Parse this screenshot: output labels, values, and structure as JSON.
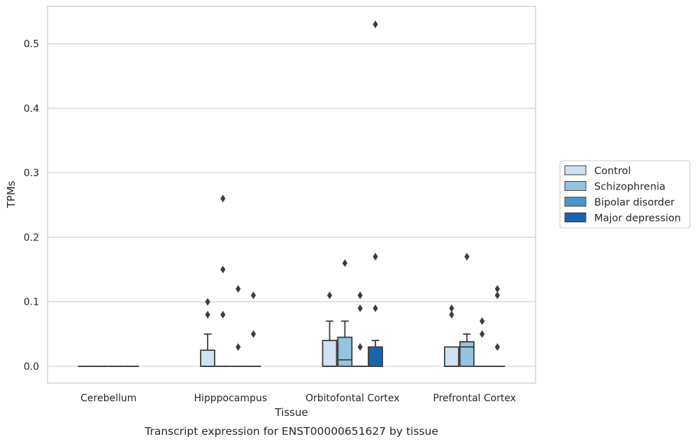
{
  "caption": "Transcript expression for ENST00000651627 by tissue",
  "chart_data": {
    "type": "box",
    "xlabel": "Tissue",
    "ylabel": "TPMs",
    "ylim": [
      -0.026,
      0.558
    ],
    "yticks": [
      0.0,
      0.1,
      0.2,
      0.3,
      0.4,
      0.5
    ],
    "ytick_labels": [
      "0.0",
      "0.1",
      "0.2",
      "0.3",
      "0.4",
      "0.5"
    ],
    "grid": true,
    "legend_position": "right",
    "categories": [
      "Cerebellum",
      "Hipppocampus",
      "Orbitofontal Cortex",
      "Prefrontal Cortex"
    ],
    "colors": [
      "#d0e1f2",
      "#94c4df",
      "#4a98c9",
      "#1764ab"
    ],
    "series": [
      {
        "name": "Control",
        "boxes": [
          {
            "q1": 0,
            "median": 0,
            "q3": 0,
            "whisker_low": 0,
            "whisker_high": 0,
            "outliers": []
          },
          {
            "q1": 0,
            "median": 0,
            "q3": 0.025,
            "whisker_low": 0,
            "whisker_high": 0.05,
            "outliers": [
              0.08,
              0.1
            ]
          },
          {
            "q1": 0,
            "median": 0,
            "q3": 0.04,
            "whisker_low": 0,
            "whisker_high": 0.07,
            "outliers": [
              0.11
            ]
          },
          {
            "q1": 0,
            "median": 0,
            "q3": 0.03,
            "whisker_low": 0,
            "whisker_high": 0.03,
            "outliers": [
              0.08,
              0.09
            ]
          }
        ]
      },
      {
        "name": "Schizophrenia",
        "boxes": [
          {
            "q1": 0,
            "median": 0,
            "q3": 0,
            "whisker_low": 0,
            "whisker_high": 0,
            "outliers": []
          },
          {
            "q1": 0,
            "median": 0,
            "q3": 0,
            "whisker_low": 0,
            "whisker_high": 0,
            "outliers": [
              0.08,
              0.15,
              0.26
            ]
          },
          {
            "q1": 0,
            "median": 0.01,
            "q3": 0.045,
            "whisker_low": 0,
            "whisker_high": 0.07,
            "outliers": [
              0.16
            ]
          },
          {
            "q1": 0,
            "median": 0.03,
            "q3": 0.038,
            "whisker_low": 0,
            "whisker_high": 0.05,
            "outliers": [
              0.17
            ]
          }
        ]
      },
      {
        "name": "Bipolar disorder",
        "boxes": [
          {
            "q1": 0,
            "median": 0,
            "q3": 0,
            "whisker_low": 0,
            "whisker_high": 0,
            "outliers": []
          },
          {
            "q1": 0,
            "median": 0,
            "q3": 0,
            "whisker_low": 0,
            "whisker_high": 0,
            "outliers": [
              0.03,
              0.12
            ]
          },
          {
            "q1": 0,
            "median": 0,
            "q3": 0,
            "whisker_low": 0,
            "whisker_high": 0,
            "outliers": [
              0.03,
              0.09,
              0.11
            ]
          },
          {
            "q1": 0,
            "median": 0,
            "q3": 0,
            "whisker_low": 0,
            "whisker_high": 0,
            "outliers": [
              0.05,
              0.07
            ]
          }
        ]
      },
      {
        "name": "Major depression",
        "boxes": [
          {
            "q1": 0,
            "median": 0,
            "q3": 0,
            "whisker_low": 0,
            "whisker_high": 0,
            "outliers": []
          },
          {
            "q1": 0,
            "median": 0,
            "q3": 0,
            "whisker_low": 0,
            "whisker_high": 0,
            "outliers": [
              0.05,
              0.11
            ]
          },
          {
            "q1": 0,
            "median": 0,
            "q3": 0.03,
            "whisker_low": 0,
            "whisker_high": 0.04,
            "outliers": [
              0.09,
              0.17,
              0.53
            ]
          },
          {
            "q1": 0,
            "median": 0,
            "q3": 0,
            "whisker_low": 0,
            "whisker_high": 0,
            "outliers": [
              0.03,
              0.11,
              0.12
            ]
          }
        ]
      }
    ]
  }
}
